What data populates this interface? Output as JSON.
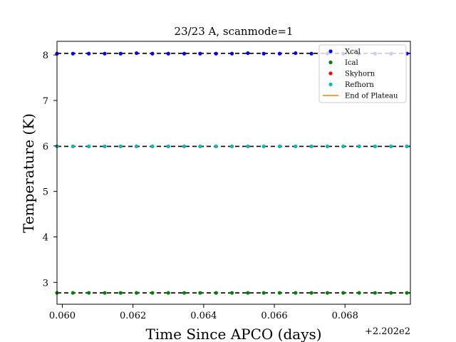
{
  "chart_data": {
    "type": "scatter",
    "title": "23/23 A, scanmode=1",
    "xlabel": "Time Since APCO (days)",
    "ylabel": "Temperature (K)",
    "x_offset_label": "+2.202e2",
    "xlim": [
      0.05985,
      0.06985
    ],
    "ylim": [
      2.52,
      8.3
    ],
    "x_ticks": [
      0.06,
      0.062,
      0.064,
      0.066,
      0.068
    ],
    "x_tick_labels": [
      "0.060",
      "0.062",
      "0.064",
      "0.066",
      "0.068"
    ],
    "y_ticks": [
      3,
      4,
      5,
      6,
      7,
      8
    ],
    "y_tick_labels": [
      "3",
      "4",
      "5",
      "6",
      "7",
      "8"
    ],
    "grid": false,
    "legend_position": "top-right",
    "x": [
      0.05985,
      0.0603,
      0.06075,
      0.0612,
      0.06165,
      0.0621,
      0.06255,
      0.063,
      0.06345,
      0.0639,
      0.06435,
      0.0648,
      0.06525,
      0.0657,
      0.06615,
      0.0666,
      0.06705,
      0.0675,
      0.06795,
      0.0684,
      0.06885,
      0.0693,
      0.06975
    ],
    "series": [
      {
        "name": "Xcal",
        "color": "#0000ff",
        "marker": "dot",
        "values": [
          8.03,
          8.03,
          8.03,
          8.03,
          8.03,
          8.04,
          8.03,
          8.03,
          8.03,
          8.03,
          8.03,
          8.03,
          8.04,
          8.03,
          8.03,
          8.04,
          8.03,
          8.03,
          8.03,
          8.03,
          8.03,
          8.03,
          8.03
        ]
      },
      {
        "name": "Ical",
        "color": "#008000",
        "marker": "dot",
        "values": [
          2.77,
          2.77,
          2.77,
          2.77,
          2.77,
          2.77,
          2.77,
          2.77,
          2.77,
          2.77,
          2.77,
          2.77,
          2.77,
          2.77,
          2.77,
          2.77,
          2.77,
          2.77,
          2.77,
          2.77,
          2.77,
          2.77,
          2.77
        ]
      },
      {
        "name": "Skyhorn",
        "color": "#ff0000",
        "marker": "dot",
        "values": [
          5.99,
          5.99,
          5.99,
          5.99,
          5.99,
          5.99,
          5.99,
          5.99,
          5.99,
          5.99,
          5.99,
          5.99,
          5.99,
          5.99,
          5.99,
          5.99,
          5.99,
          5.99,
          5.99,
          5.99,
          5.99,
          5.99,
          5.99
        ]
      },
      {
        "name": "Refhorn",
        "color": "#00bfbf",
        "marker": "dot",
        "values": [
          5.99,
          5.99,
          5.99,
          5.99,
          5.99,
          5.99,
          5.99,
          5.99,
          5.99,
          5.99,
          5.99,
          5.99,
          5.99,
          5.99,
          5.99,
          5.99,
          5.99,
          5.99,
          5.99,
          5.99,
          5.99,
          5.99,
          5.99
        ]
      },
      {
        "name": "End of Plateau",
        "color": "#ff7f0e",
        "marker": "line",
        "values": []
      }
    ],
    "reference_lines": [
      {
        "y": 8.035,
        "color": "#000000",
        "style": "dashed"
      },
      {
        "y": 5.99,
        "color": "#000000",
        "style": "dashed"
      },
      {
        "y": 2.77,
        "color": "#000000",
        "style": "dashed"
      }
    ]
  }
}
